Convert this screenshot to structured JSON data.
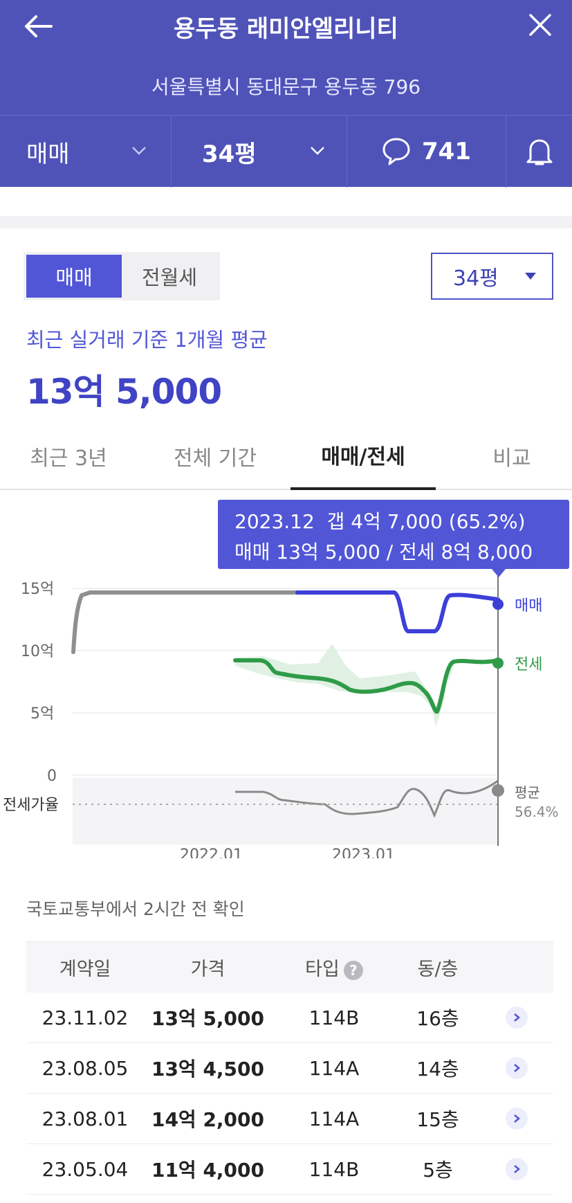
{
  "header": {
    "title": "용두동 래미안엘리니티",
    "address": "서울특별시 동대문구 용두동 796",
    "deal_type": "매매",
    "area": "34평",
    "comment_count": "741"
  },
  "toggle": {
    "active": "매매",
    "inactive": "전월세"
  },
  "area_select": "34평",
  "average": {
    "caption": "최근 실거래 기준 1개월 평균",
    "price": "13억 5,000"
  },
  "tabs": [
    "최근 3년",
    "전체 기간",
    "매매/전세",
    "비교"
  ],
  "tooltip": {
    "line1": "2023.12  갭 4억 7,000 (65.2%)",
    "line2": "매매 13억 5,000 / 전세 8억 8,000"
  },
  "chart_data": {
    "type": "line",
    "ylabel_ticks": [
      "15억",
      "10억",
      "5억",
      "0"
    ],
    "ylim": [
      0,
      15
    ],
    "x_ticks": [
      "2022.01",
      "2023.01"
    ],
    "series": [
      {
        "name": "매매",
        "color": "#3c3fd8",
        "x": [
          "2021.06",
          "2021.07",
          "2021.08",
          "2022.01",
          "2022.06",
          "2022.09",
          "2022.12",
          "2023.01",
          "2023.02",
          "2023.03",
          "2023.04",
          "2023.05",
          "2023.06",
          "2023.08",
          "2023.09",
          "2023.10",
          "2023.11",
          "2023.12"
        ],
        "values": [
          9.7,
          13.0,
          14.0,
          14.0,
          14.0,
          14.0,
          14.0,
          14.0,
          14.0,
          13.0,
          11.4,
          11.4,
          11.4,
          14.2,
          14.0,
          13.8,
          13.8,
          13.5
        ]
      },
      {
        "name": "전세",
        "color": "#2f9b48",
        "x": [
          "2022.06",
          "2022.08",
          "2022.09",
          "2022.10",
          "2022.11",
          "2022.12",
          "2023.01",
          "2023.02",
          "2023.03",
          "2023.04",
          "2023.05",
          "2023.06",
          "2023.07",
          "2023.08",
          "2023.09",
          "2023.10",
          "2023.11",
          "2023.12"
        ],
        "values": [
          9.0,
          9.0,
          8.7,
          8.0,
          7.6,
          7.6,
          7.4,
          6.5,
          6.4,
          6.8,
          7.2,
          7.4,
          5.0,
          8.8,
          8.2,
          8.0,
          8.3,
          8.8
        ]
      }
    ],
    "ratio": {
      "label": "전세가율",
      "avg_label": "평균",
      "avg_value": "56.4%"
    }
  },
  "source_text": "국토교통부에서 2시간 전 확인",
  "table": {
    "headers": [
      "계약일",
      "가격",
      "타입",
      "동/층"
    ],
    "rows": [
      {
        "date": "23.11.02",
        "price": "13억 5,000",
        "type": "114B",
        "floor": "16층"
      },
      {
        "date": "23.08.05",
        "price": "13억 4,500",
        "type": "114A",
        "floor": "14층"
      },
      {
        "date": "23.08.01",
        "price": "14억 2,000",
        "type": "114A",
        "floor": "15층"
      },
      {
        "date": "23.05.04",
        "price": "11억 4,000",
        "type": "114B",
        "floor": "5층"
      }
    ]
  }
}
